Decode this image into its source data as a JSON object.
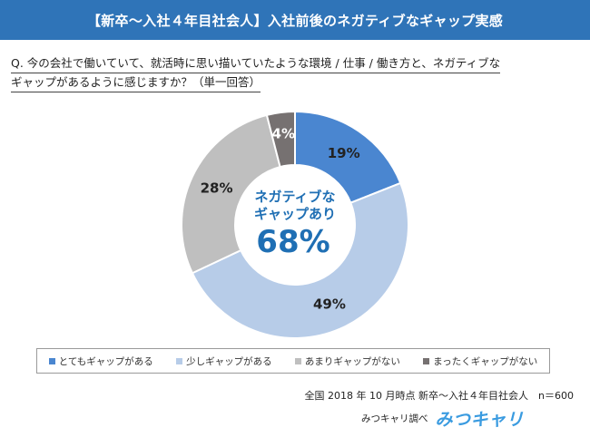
{
  "header": {
    "title": "【新卒～入社４年目社会人】入社前後のネガティブなギャップ実感"
  },
  "question": {
    "line1": "Q. 今の会社で働いていて、就活時に思い描いていたような環境 / 仕事 / 働き方と、ネガティブな",
    "line2": "ギャップがあるように感じますか？（単一回答）"
  },
  "chart_data": {
    "type": "pie",
    "donut": true,
    "categories": [
      "とてもギャップがある",
      "少しギャップがある",
      "あまりギャップがない",
      "まったくギャップがない"
    ],
    "values": [
      19,
      49,
      28,
      4
    ],
    "value_labels": [
      "19%",
      "49%",
      "28%",
      "4%"
    ],
    "colors": [
      "#4a86d0",
      "#b7cce8",
      "#bfbfbf",
      "#767171"
    ],
    "center_text": {
      "line1": "ネガティブな",
      "line2": "ギャップあり",
      "value": "68%"
    },
    "legend_position": "bottom",
    "start_angle": "top",
    "direction": "clockwise"
  },
  "legend": {
    "items": [
      {
        "label": "とてもギャップがある",
        "color": "#4a86d0"
      },
      {
        "label": "少しギャップがある",
        "color": "#b7cce8"
      },
      {
        "label": "あまりギャップがない",
        "color": "#bfbfbf"
      },
      {
        "label": "まったくギャップがない",
        "color": "#767171"
      }
    ]
  },
  "footnote": "全国 2018 年 10 月時点 新卒～入社４年目社会人　n＝600",
  "source": {
    "label": "みつキャリ調べ",
    "logo": "みつキャリ"
  }
}
